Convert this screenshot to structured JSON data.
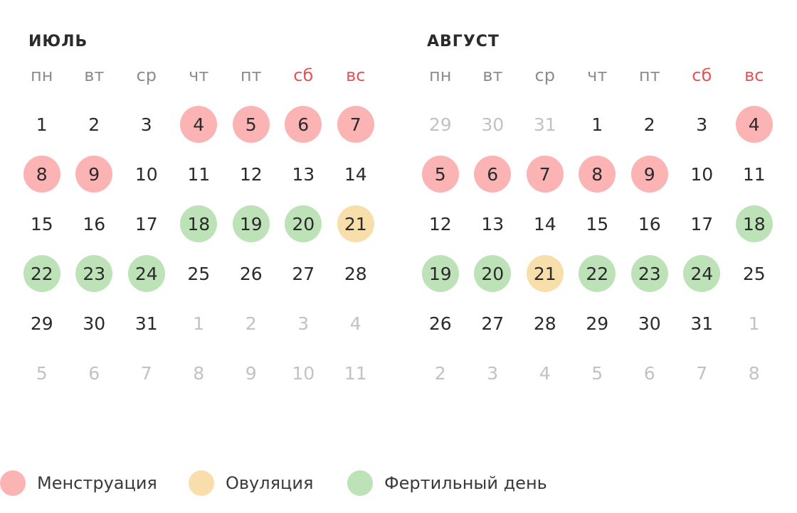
{
  "colors": {
    "menstruation": "#fbb3b3",
    "ovulation": "#f8deaa",
    "fertile": "#bde2b7",
    "weekend_text": "#e25656",
    "muted_text": "#c2c2c2"
  },
  "weekdays": [
    "пн",
    "вт",
    "ср",
    "чт",
    "пт",
    "сб",
    "вс"
  ],
  "months": [
    {
      "title": "ИЮЛЬ",
      "weeks": [
        [
          {
            "n": "1"
          },
          {
            "n": "2"
          },
          {
            "n": "3"
          },
          {
            "n": "4",
            "s": "menstruation"
          },
          {
            "n": "5",
            "s": "menstruation"
          },
          {
            "n": "6",
            "s": "menstruation"
          },
          {
            "n": "7",
            "s": "menstruation"
          }
        ],
        [
          {
            "n": "8",
            "s": "menstruation"
          },
          {
            "n": "9",
            "s": "menstruation"
          },
          {
            "n": "10"
          },
          {
            "n": "11"
          },
          {
            "n": "12"
          },
          {
            "n": "13"
          },
          {
            "n": "14"
          }
        ],
        [
          {
            "n": "15"
          },
          {
            "n": "16"
          },
          {
            "n": "17"
          },
          {
            "n": "18",
            "s": "fertile"
          },
          {
            "n": "19",
            "s": "fertile"
          },
          {
            "n": "20",
            "s": "fertile"
          },
          {
            "n": "21",
            "s": "ovulation"
          }
        ],
        [
          {
            "n": "22",
            "s": "fertile"
          },
          {
            "n": "23",
            "s": "fertile"
          },
          {
            "n": "24",
            "s": "fertile"
          },
          {
            "n": "25"
          },
          {
            "n": "26"
          },
          {
            "n": "27"
          },
          {
            "n": "28"
          }
        ],
        [
          {
            "n": "29"
          },
          {
            "n": "30"
          },
          {
            "n": "31"
          },
          {
            "n": "1",
            "o": true
          },
          {
            "n": "2",
            "o": true
          },
          {
            "n": "3",
            "o": true
          },
          {
            "n": "4",
            "o": true
          }
        ],
        [
          {
            "n": "5",
            "o": true
          },
          {
            "n": "6",
            "o": true
          },
          {
            "n": "7",
            "o": true
          },
          {
            "n": "8",
            "o": true
          },
          {
            "n": "9",
            "o": true
          },
          {
            "n": "10",
            "o": true
          },
          {
            "n": "11",
            "o": true
          }
        ]
      ]
    },
    {
      "title": "АВГУСТ",
      "weeks": [
        [
          {
            "n": "29",
            "o": true
          },
          {
            "n": "30",
            "o": true
          },
          {
            "n": "31",
            "o": true
          },
          {
            "n": "1"
          },
          {
            "n": "2"
          },
          {
            "n": "3"
          },
          {
            "n": "4",
            "s": "menstruation"
          }
        ],
        [
          {
            "n": "5",
            "s": "menstruation"
          },
          {
            "n": "6",
            "s": "menstruation"
          },
          {
            "n": "7",
            "s": "menstruation"
          },
          {
            "n": "8",
            "s": "menstruation"
          },
          {
            "n": "9",
            "s": "menstruation"
          },
          {
            "n": "10"
          },
          {
            "n": "11"
          }
        ],
        [
          {
            "n": "12"
          },
          {
            "n": "13"
          },
          {
            "n": "14"
          },
          {
            "n": "15"
          },
          {
            "n": "16"
          },
          {
            "n": "17"
          },
          {
            "n": "18",
            "s": "fertile"
          }
        ],
        [
          {
            "n": "19",
            "s": "fertile"
          },
          {
            "n": "20",
            "s": "fertile"
          },
          {
            "n": "21",
            "s": "ovulation"
          },
          {
            "n": "22",
            "s": "fertile"
          },
          {
            "n": "23",
            "s": "fertile"
          },
          {
            "n": "24",
            "s": "fertile"
          },
          {
            "n": "25"
          }
        ],
        [
          {
            "n": "26"
          },
          {
            "n": "27"
          },
          {
            "n": "28"
          },
          {
            "n": "29"
          },
          {
            "n": "30"
          },
          {
            "n": "31"
          },
          {
            "n": "1",
            "o": true
          }
        ],
        [
          {
            "n": "2",
            "o": true
          },
          {
            "n": "3",
            "o": true
          },
          {
            "n": "4",
            "o": true
          },
          {
            "n": "5",
            "o": true
          },
          {
            "n": "6",
            "o": true
          },
          {
            "n": "7",
            "o": true
          },
          {
            "n": "8",
            "o": true
          }
        ]
      ]
    }
  ],
  "legend": [
    {
      "status": "menstruation",
      "label": "Менструация"
    },
    {
      "status": "ovulation",
      "label": "Овуляция"
    },
    {
      "status": "fertile",
      "label": "Фертильный день"
    }
  ]
}
